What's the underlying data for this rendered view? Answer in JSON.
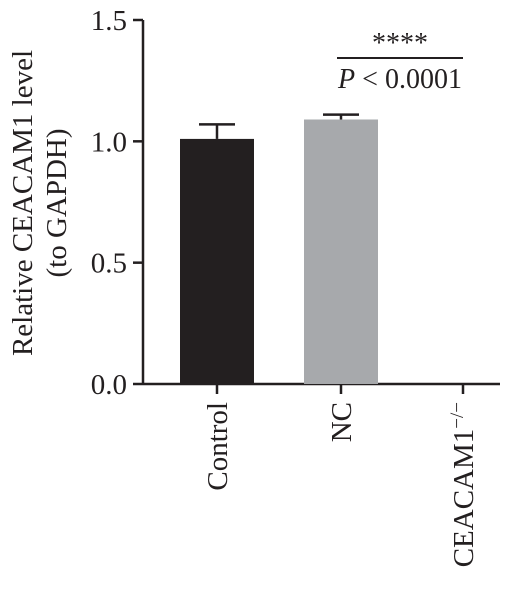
{
  "chart_data": {
    "type": "bar",
    "categories": [
      "Control",
      "NC",
      "CEACAM1"
    ],
    "category_superscripts": [
      "",
      "",
      "−/−"
    ],
    "values": [
      1.01,
      1.09,
      0.0
    ],
    "errors": [
      0.06,
      0.02,
      0.0
    ],
    "colors": [
      "#231f20",
      "#a7a9ac",
      "#231f20"
    ],
    "ylabel_line1": "Relative CEACAM1 level",
    "ylabel_line2": "(to GAPDH)",
    "ylim": [
      0,
      1.5
    ],
    "yticks": [
      "0.0",
      "0.5",
      "1.0",
      "1.5"
    ],
    "ytick_values": [
      0,
      0.5,
      1.0,
      1.5
    ],
    "grid": false,
    "annotation": {
      "stars": "****",
      "p_italic": "P",
      "p_rest": " < 0.0001",
      "from_category": 1,
      "to_category": 2
    }
  }
}
